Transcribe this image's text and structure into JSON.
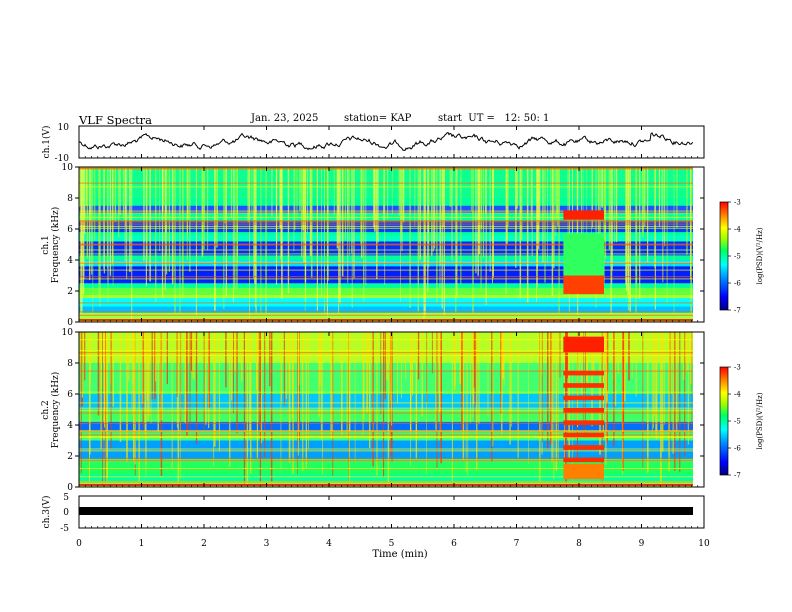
{
  "header": {
    "title": "VLF Spectra",
    "date": "Jan. 23, 2025",
    "station": "station= KAP",
    "start": "start  UT =   12: 50: 1"
  },
  "colors": {
    "spectrum": [
      "#000080",
      "#0000ff",
      "#0090ff",
      "#00ffff",
      "#00ff60",
      "#a0ff00",
      "#ffff00",
      "#ff8000",
      "#ff0000"
    ]
  },
  "chart_data": [
    {
      "type": "line",
      "name": "ch1-waveform",
      "ylabel": "ch.1(V)",
      "ylim": [
        -10,
        10
      ],
      "y_ticks": [
        "10",
        "-10"
      ],
      "xlim": [
        0,
        10
      ]
    },
    {
      "type": "heatmap",
      "name": "ch1-spectrogram",
      "ylabel_line1": "ch.1",
      "ylabel_line2": "Frequency (kHz)",
      "ylim": [
        0,
        10
      ],
      "y_ticks": [
        0,
        2,
        4,
        6,
        8,
        10
      ],
      "colorbar": {
        "label": "log(PSD)(V²/Hz)",
        "ticks": [
          "-3",
          "-4",
          "-5",
          "-6",
          "-7"
        ],
        "range": [
          -7,
          -3
        ]
      }
    },
    {
      "type": "heatmap",
      "name": "ch2-spectrogram",
      "ylabel_line1": "ch.2",
      "ylabel_line2": "Frequency (kHz)",
      "ylim": [
        0,
        10
      ],
      "y_ticks": [
        0,
        2,
        4,
        6,
        8,
        10
      ],
      "colorbar": {
        "label": "log(PSD)(V²/Hz)",
        "ticks": [
          "-3",
          "-4",
          "-5",
          "-6",
          "-7"
        ],
        "range": [
          -7,
          -3
        ]
      }
    },
    {
      "type": "line",
      "name": "ch3-waveform",
      "ylabel": "ch.3(V)",
      "ylim": [
        -5,
        5
      ],
      "y_ticks": [
        "5",
        "0",
        "-5"
      ],
      "xlim": [
        0,
        10
      ]
    }
  ],
  "x_axis": {
    "label": "Time (min)",
    "ticks": [
      0,
      1,
      2,
      3,
      4,
      5,
      6,
      7,
      8,
      9,
      10
    ]
  }
}
